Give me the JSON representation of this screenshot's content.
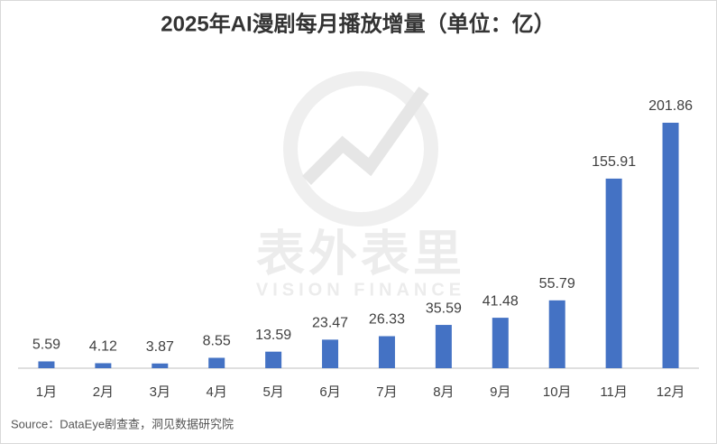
{
  "chart_data": {
    "type": "bar",
    "title": "2025年AI漫剧每月播放增量（单位：亿）",
    "categories": [
      "1月",
      "2月",
      "3月",
      "4月",
      "5月",
      "6月",
      "7月",
      "8月",
      "9月",
      "10月",
      "11月",
      "12月"
    ],
    "values": [
      5.59,
      4.12,
      3.87,
      8.55,
      13.59,
      23.47,
      26.33,
      35.59,
      41.48,
      55.79,
      155.91,
      201.86
    ],
    "color": "#4472c4",
    "source": "Source：DataEye剧查查，洞见数据研究院",
    "watermark": {
      "brand": "表外表里",
      "brand_en": "VISION FINANCE"
    }
  }
}
